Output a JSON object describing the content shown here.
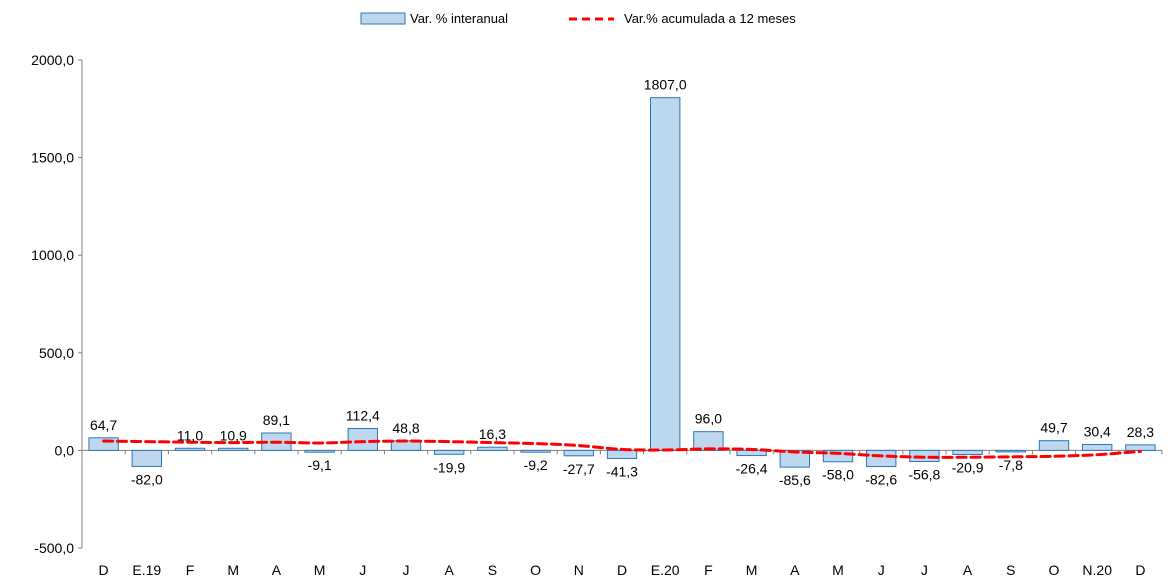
{
  "chart_data": {
    "type": "bar",
    "title": "",
    "xlabel": "",
    "ylabel": "",
    "categories": [
      "D",
      "E.19",
      "F",
      "M",
      "A",
      "M",
      "J",
      "J",
      "A",
      "S",
      "O",
      "N",
      "D",
      "E.20",
      "F",
      "M",
      "A",
      "M",
      "J",
      "J",
      "A",
      "S",
      "O",
      "N.20",
      "D"
    ],
    "ylim": [
      -500,
      2000
    ],
    "yticks": [
      -500,
      0,
      500,
      1000,
      1500,
      2000
    ],
    "ytick_labels": [
      "-500,0",
      "0,0",
      "500,0",
      "1000,0",
      "1500,0",
      "2000,0"
    ],
    "grid": false,
    "legend": {
      "position": "top-center"
    },
    "series": [
      {
        "name": "Var. % interanual",
        "type": "bar",
        "color": "#bdd7ee",
        "edge_color": "#2e75b6",
        "values": [
          64.7,
          -82.0,
          11.0,
          10.9,
          89.1,
          -9.1,
          112.4,
          48.8,
          -19.9,
          16.3,
          -9.2,
          -27.7,
          -41.3,
          1807.0,
          96.0,
          -26.4,
          -85.6,
          -58.0,
          -82.6,
          -56.8,
          -20.9,
          -7.8,
          49.7,
          30.4,
          28.3
        ],
        "labels": [
          "64,7",
          "-82,0",
          "11,0",
          "10,9",
          "89,1",
          "-9,1",
          "112,4",
          "48,8",
          "-19,9",
          "16,3",
          "-9,2",
          "-27,7",
          "-41,3",
          "1807,0",
          "96,0",
          "-26,4",
          "-85,6",
          "-58,0",
          "-82,6",
          "-56,8",
          "-20,9",
          "-7,8",
          "49,7",
          "30,4",
          "28,3"
        ]
      },
      {
        "name": "Var.% acumulada a 12 meses",
        "type": "line",
        "style": "dashed",
        "color": "#ff0000",
        "values": [
          48,
          45,
          42,
          40,
          42,
          38,
          45,
          48,
          45,
          40,
          35,
          25,
          5,
          2,
          8,
          5,
          -8,
          -15,
          -28,
          -35,
          -35,
          -33,
          -30,
          -22,
          -5
        ]
      }
    ]
  }
}
